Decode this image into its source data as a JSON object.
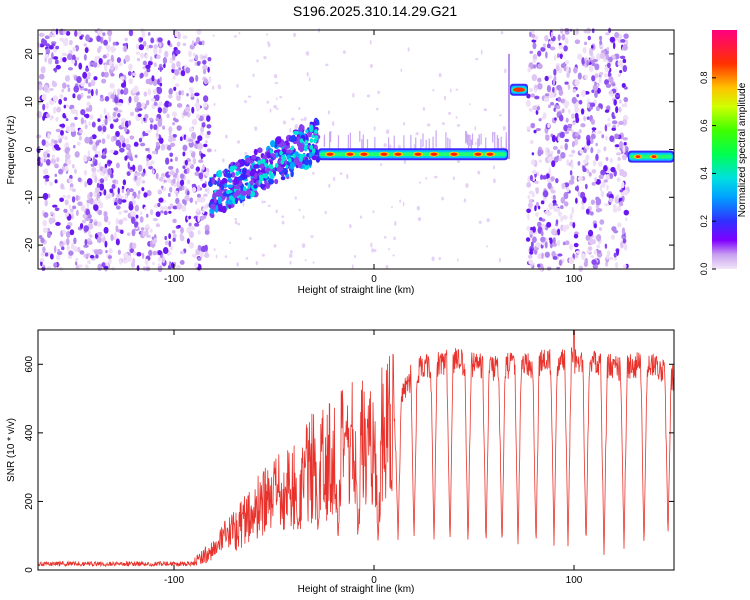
{
  "title": "S196.2025.310.14.29.G21",
  "colors": {
    "line": "#e8322b",
    "frame": "#000000",
    "colormap": [
      "#f2dcf8",
      "#8000ff",
      "#2020ff",
      "#00ccff",
      "#00ff40",
      "#ffff00",
      "#ff8000",
      "#ff0000",
      "#ff00ff"
    ]
  },
  "chart_data": [
    {
      "type": "heatmap",
      "name": "spectrogram",
      "xlabel": "Height of straight line (km)",
      "ylabel": "Frequency (Hz)",
      "xlim": [
        -168,
        150
      ],
      "ylim": [
        -25,
        25
      ],
      "xticks": [
        -100,
        0,
        100
      ],
      "yticks": [
        -20,
        -10,
        0,
        10,
        20
      ],
      "xtick_labels": [
        "-100",
        "0",
        "100"
      ],
      "ytick_labels": [
        "-20",
        "-10",
        "0",
        "10",
        "20"
      ],
      "colorbar": {
        "label": "Normalized spectral amplitude",
        "ticks": [
          0.0,
          0.2,
          0.4,
          0.6,
          0.8
        ],
        "tick_labels": [
          "0.0",
          "0.2",
          "0.4",
          "0.6",
          "0.8"
        ],
        "range": [
          0,
          1
        ]
      },
      "features": {
        "noise_regions_x": [
          [
            -168,
            -82
          ],
          [
            77,
            127
          ]
        ],
        "scatter_band_x": [
          -82,
          -28
        ],
        "scatter_band_freq": [
          -14,
          4
        ],
        "main_carrier": {
          "x": [
            -28,
            67
          ],
          "freq": -1
        },
        "main_carrier_peaks_x": [
          -22,
          -12,
          -5,
          5,
          12,
          22,
          30,
          40,
          52,
          58
        ],
        "shifted_carrier": {
          "x": [
            68,
            77
          ],
          "freq": 12.5
        },
        "end_carrier": {
          "x": [
            127,
            150
          ],
          "freq": -1.5
        },
        "end_carrier_peaks_x": [
          132,
          140
        ]
      }
    },
    {
      "type": "line",
      "name": "snr",
      "xlabel": "Height of straight line (km)",
      "ylabel": "SNR (10 * v/v)",
      "xlim": [
        -168,
        150
      ],
      "ylim": [
        0,
        700
      ],
      "xticks": [
        -100,
        0,
        100
      ],
      "yticks": [
        0,
        200,
        400,
        600
      ],
      "xtick_labels": [
        "-100",
        "0",
        "100"
      ],
      "ytick_labels": [
        "0",
        "200",
        "400",
        "600"
      ],
      "envelope": {
        "x": [
          -168,
          -100,
          -90,
          -80,
          -70,
          -60,
          -50,
          -40,
          -30,
          -20,
          -10,
          0,
          10,
          15,
          20,
          30,
          40,
          60,
          80,
          100,
          120,
          140,
          150
        ],
        "y": [
          18,
          20,
          25,
          60,
          120,
          170,
          210,
          250,
          300,
          330,
          360,
          380,
          420,
          520,
          580,
          600,
          610,
          590,
          600,
          610,
          590,
          600,
          560
        ]
      },
      "dips_x": [
        -38,
        -28,
        -18,
        -8,
        2,
        12,
        20,
        30,
        38,
        47,
        56,
        64,
        72,
        81,
        90,
        97,
        106,
        115,
        125,
        135,
        147
      ],
      "dip_y": [
        120,
        110,
        100,
        100,
        90,
        90,
        80,
        80,
        75,
        70,
        70,
        65,
        65,
        65,
        65,
        65,
        65,
        40,
        65,
        65,
        100
      ],
      "peak_annotations": {
        "max_x": 100,
        "max_y": 700
      }
    }
  ]
}
